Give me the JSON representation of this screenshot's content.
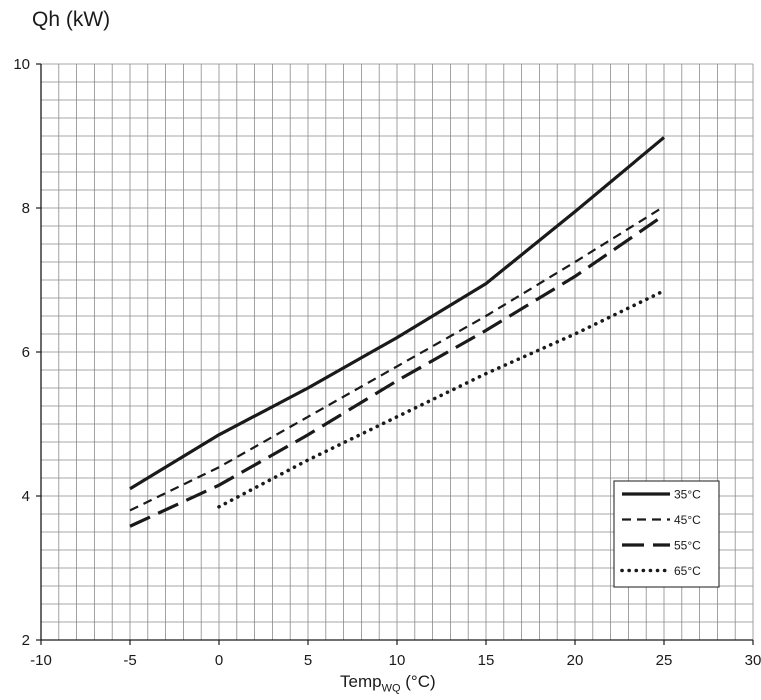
{
  "chart_data": {
    "type": "line",
    "ylabel": "Qh (kW)",
    "xlabel": {
      "main": "Temp",
      "sub": "WQ",
      "unit": " (°C)"
    },
    "xlim": [
      -10,
      30
    ],
    "ylim": [
      2,
      10
    ],
    "x_ticks": [
      -10,
      -5,
      0,
      5,
      10,
      15,
      20,
      25,
      30
    ],
    "y_ticks": [
      2,
      4,
      6,
      8,
      10
    ],
    "x_minor_step": 1,
    "y_minor_step": 0.25,
    "grid": true,
    "legend_position": "bottom-right",
    "series": [
      {
        "name": "35°C",
        "style": "solid",
        "x": [
          -5,
          0,
          5,
          10,
          15,
          20,
          25
        ],
        "y": [
          4.1,
          4.85,
          5.5,
          6.2,
          6.95,
          7.95,
          8.98
        ]
      },
      {
        "name": "45°C",
        "style": "dashed",
        "x": [
          -5,
          0,
          5,
          10,
          15,
          20,
          25
        ],
        "y": [
          3.8,
          4.4,
          5.1,
          5.8,
          6.5,
          7.25,
          8.02
        ]
      },
      {
        "name": "55°C",
        "style": "longdash",
        "x": [
          -5,
          0,
          5,
          10,
          15,
          20,
          25
        ],
        "y": [
          3.58,
          4.15,
          4.85,
          5.6,
          6.3,
          7.05,
          7.9
        ]
      },
      {
        "name": "65°C",
        "style": "dotted",
        "x": [
          0,
          5,
          10,
          15,
          20,
          25
        ],
        "y": [
          3.85,
          4.5,
          5.1,
          5.7,
          6.25,
          6.85
        ]
      }
    ]
  }
}
